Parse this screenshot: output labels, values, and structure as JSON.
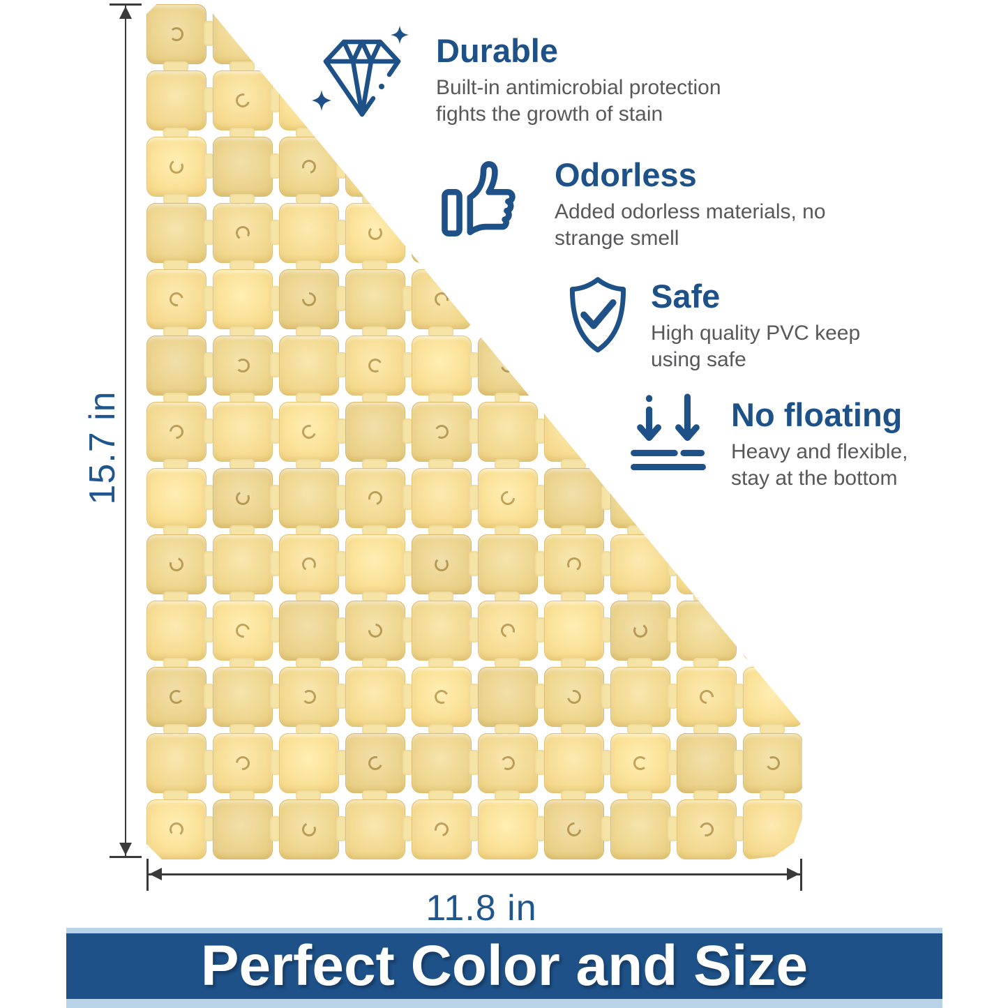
{
  "features": [
    {
      "icon": "diamond-sparkle-icon",
      "title": "Durable",
      "lines": {
        "l1": "Built-in antimicrobial protection",
        "l2": "fights the growth of stain"
      }
    },
    {
      "icon": "thumbs-up-icon",
      "title": "Odorless",
      "lines": {
        "l1": "Added odorless materials, no",
        "l2": "strange smell"
      }
    },
    {
      "icon": "shield-check-icon",
      "title": "Safe",
      "lines": {
        "l1": "High quality PVC keep",
        "l2": "using safe"
      }
    },
    {
      "icon": "arrows-down-to-bottom-icon",
      "title": "No floating",
      "lines": {
        "l1": "Heavy and flexible,",
        "l2": "stay at the bottom"
      }
    }
  ],
  "dimensions": {
    "height_label": "15.7 in",
    "width_label": "11.8 in"
  },
  "banner": {
    "title": "Perfect Color and Size"
  },
  "mat": {
    "shape": "right-triangle",
    "rows": 13,
    "cols": 10,
    "suction_mark": "c-shape"
  },
  "colors": {
    "accent_blue": "#1d5187",
    "body_text": "#58585a",
    "dimension_line": "#3a3a3a",
    "dimension_text": "#1f568e",
    "mat_light": "#f9e7af",
    "mat_dark": "#eccf7e",
    "mat_tab": "#f6e3a6",
    "mat_border": "#dfbe6e",
    "suction_mark": "#a8873c",
    "banner_blue": "#1d5187",
    "banner_light_blue": "#b8d2e8",
    "banner_text": "#ffffff"
  }
}
